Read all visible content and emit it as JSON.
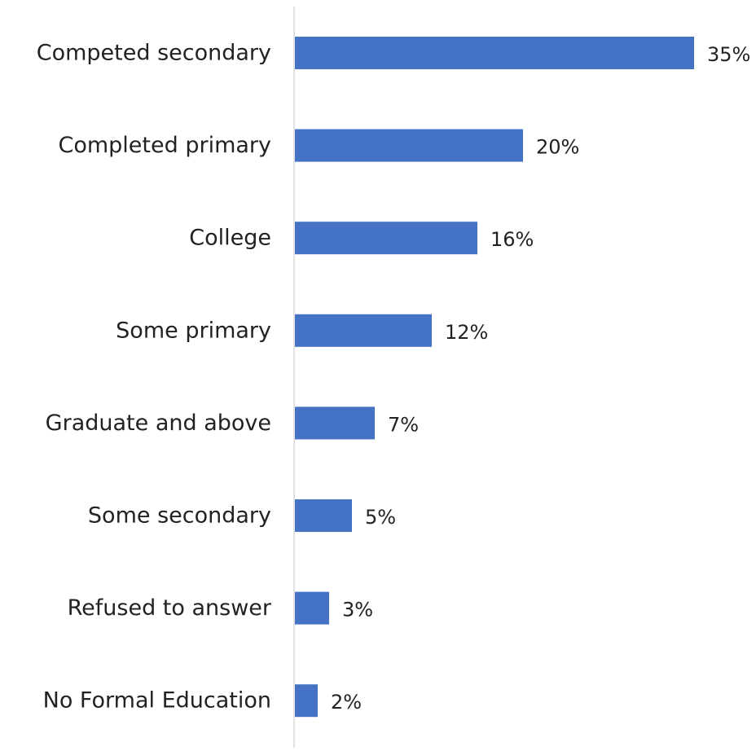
{
  "chart_data": {
    "type": "bar",
    "orientation": "horizontal",
    "categories": [
      "Competed secondary",
      "Completed primary",
      "College",
      "Some primary",
      "Graduate and above",
      "Some secondary",
      "Refused to answer",
      "No Formal Education"
    ],
    "values": [
      35,
      20,
      16,
      12,
      7,
      5,
      3,
      2
    ],
    "value_labels": [
      "35%",
      "20%",
      "16%",
      "12%",
      "7%",
      "5%",
      "3%",
      "2%"
    ],
    "unit": "%",
    "title": "",
    "xlabel": "",
    "ylabel": "",
    "xlim": [
      0,
      35
    ],
    "grid": false,
    "legend": "none",
    "bar_color": "#4472C4",
    "axis_color": "#D9D9D9",
    "text_color": "#222222"
  }
}
